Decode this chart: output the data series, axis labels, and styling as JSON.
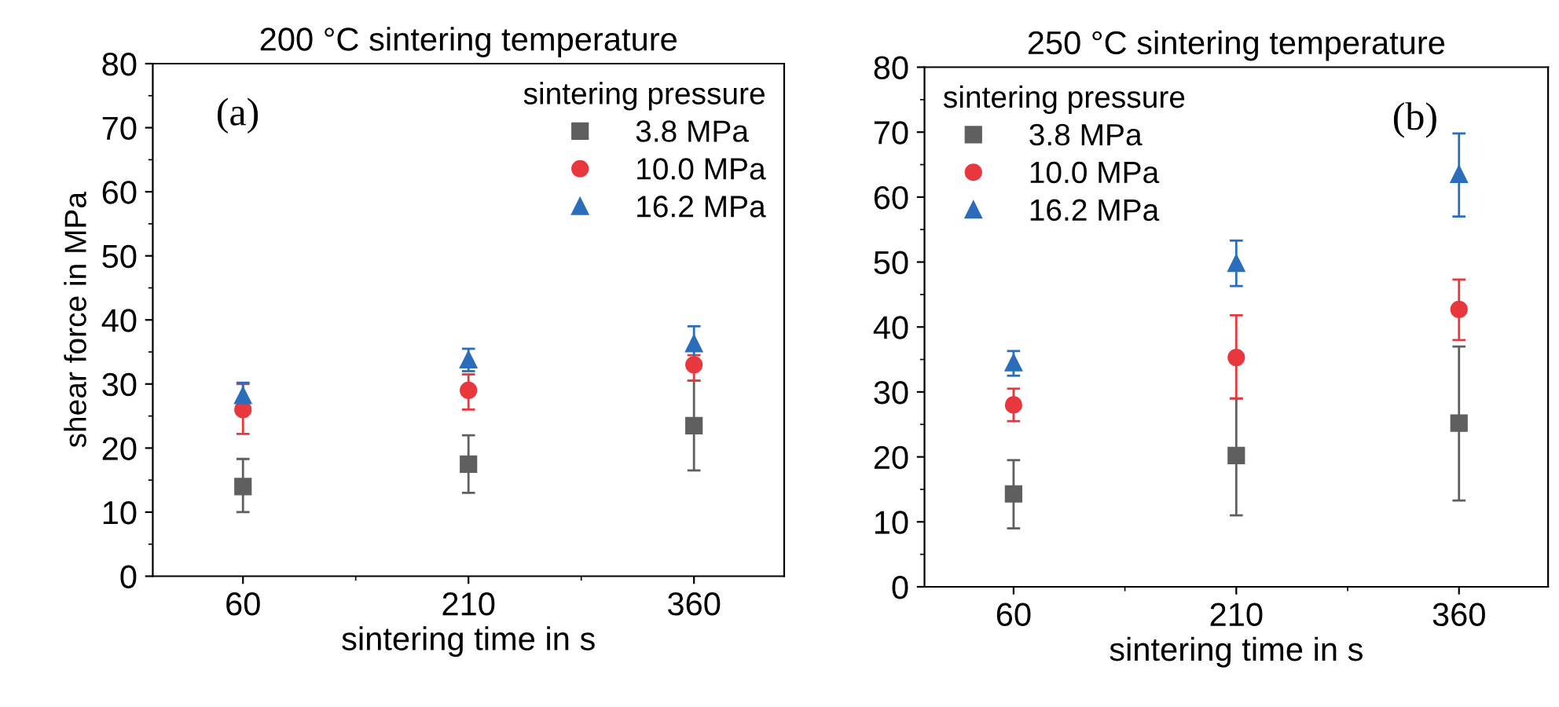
{
  "chart_data": [
    {
      "type": "scatter",
      "title": "200 °C sintering temperature",
      "xlabel": "sintering time in s",
      "ylabel": "shear force in MPa",
      "legend_title": "sintering pressure",
      "legend": "top right",
      "annotations": [
        "(a)"
      ],
      "categories": [
        "60",
        "210",
        "360"
      ],
      "ylim": [
        0,
        80
      ],
      "yticks": [
        0,
        10,
        20,
        30,
        40,
        50,
        60,
        70,
        80
      ],
      "grid": false,
      "series": [
        {
          "name": "3.8 MPa",
          "color": "#5f5f5f",
          "marker": "square",
          "values": [
            14,
            17.5,
            23.5
          ],
          "errors": [
            [
              10,
              18.3
            ],
            [
              13,
              22
            ],
            [
              16.5,
              30.5
            ]
          ]
        },
        {
          "name": "10.0 MPa",
          "color": "#e8383d",
          "marker": "circle",
          "values": [
            26,
            29,
            33
          ],
          "errors": [
            [
              22.2,
              30
            ],
            [
              26,
              31.5
            ],
            [
              30.5,
              34.5
            ]
          ]
        },
        {
          "name": "16.2 MPa",
          "color": "#2a6ebb",
          "marker": "triangle",
          "values": [
            28.2,
            33.8,
            36.3
          ],
          "errors": [
            [
              26.5,
              30.2
            ],
            [
              32,
              35.5
            ],
            [
              33.5,
              39
            ]
          ]
        }
      ]
    },
    {
      "type": "scatter",
      "title": "250 °C sintering temperature",
      "xlabel": "sintering time in s",
      "legend_title": "sintering pressure",
      "legend": "top left",
      "annotations": [
        "(b)"
      ],
      "categories": [
        "60",
        "210",
        "360"
      ],
      "ylim": [
        0,
        80
      ],
      "yticks": [
        0,
        10,
        20,
        30,
        40,
        50,
        60,
        70,
        80
      ],
      "grid": false,
      "series": [
        {
          "name": "3.8 MPa",
          "color": "#5f5f5f",
          "marker": "square",
          "values": [
            14.3,
            20.2,
            25.2
          ],
          "errors": [
            [
              9,
              19.5
            ],
            [
              11,
              29
            ],
            [
              13.3,
              37
            ]
          ]
        },
        {
          "name": "10.0 MPa",
          "color": "#e8383d",
          "marker": "circle",
          "values": [
            28,
            35.3,
            42.7
          ],
          "errors": [
            [
              25.5,
              30.5
            ],
            [
              29,
              41.8
            ],
            [
              38,
              47.3
            ]
          ]
        },
        {
          "name": "16.2 MPa",
          "color": "#2a6ebb",
          "marker": "triangle",
          "values": [
            34.5,
            49.8,
            63.5
          ],
          "errors": [
            [
              32.5,
              36.3
            ],
            [
              46.3,
              53.3
            ],
            [
              57,
              69.8
            ]
          ]
        }
      ]
    }
  ]
}
